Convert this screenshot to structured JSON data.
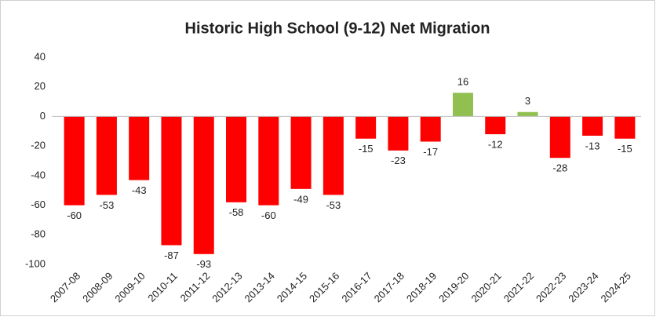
{
  "chart_data": {
    "type": "bar",
    "title": "Historic High School (9-12) Net Migration",
    "categories": [
      "2007-08",
      "2008-09",
      "2009-10",
      "2010-11",
      "2011-12",
      "2012-13",
      "2013-14",
      "2014-15",
      "2015-16",
      "2016-17",
      "2017-18",
      "2018-19",
      "2019-20",
      "2020-21",
      "2021-22",
      "2022-23",
      "2023-24",
      "2024-25"
    ],
    "values": [
      -60,
      -53,
      -43,
      -87,
      -93,
      -58,
      -60,
      -49,
      -53,
      -15,
      -23,
      -17,
      16,
      -12,
      3,
      -28,
      -13,
      -15
    ],
    "color": "#ff0000",
    "positive_color": "#92c050",
    "ylim": [
      -100,
      40
    ],
    "yticks": [
      -100,
      -80,
      -60,
      -40,
      -20,
      0,
      20,
      40
    ],
    "grid": false
  }
}
